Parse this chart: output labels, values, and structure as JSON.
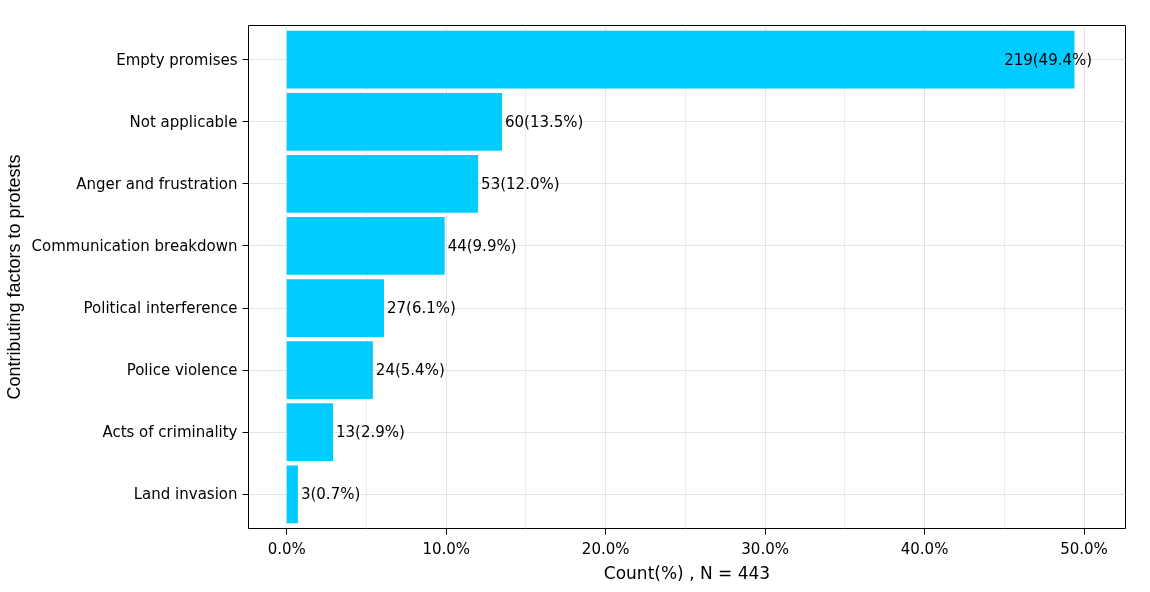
{
  "chart_data": {
    "type": "bar",
    "orientation": "horizontal",
    "xlabel": "Count(%) , N = 443",
    "ylabel": "Contributing factors to protests",
    "categories": [
      "Empty promises",
      "Not applicable",
      "Anger and frustration",
      "Communication breakdown",
      "Political interference",
      "Police violence",
      "Acts of criminality",
      "Land invasion"
    ],
    "values": [
      49.4,
      13.5,
      12.0,
      9.9,
      6.1,
      5.4,
      2.9,
      0.7
    ],
    "value_labels": [
      "219(49.4%)",
      "60(13.5%)",
      "53(12.0%)",
      "44(9.9%)",
      "27(6.1%)",
      "24(5.4%)",
      "13(2.9%)",
      "3(0.7%)"
    ],
    "color": "#00ccff",
    "xlim": [
      -2.4,
      52.6
    ],
    "xticks": [
      {
        "value": 0,
        "label": "0.0%"
      },
      {
        "value": 10,
        "label": "10.0%"
      },
      {
        "value": 20,
        "label": "20.0%"
      },
      {
        "value": 30,
        "label": "30.0%"
      },
      {
        "value": 40,
        "label": "40.0%"
      },
      {
        "value": 50,
        "label": "50.0%"
      }
    ],
    "grid": true
  }
}
